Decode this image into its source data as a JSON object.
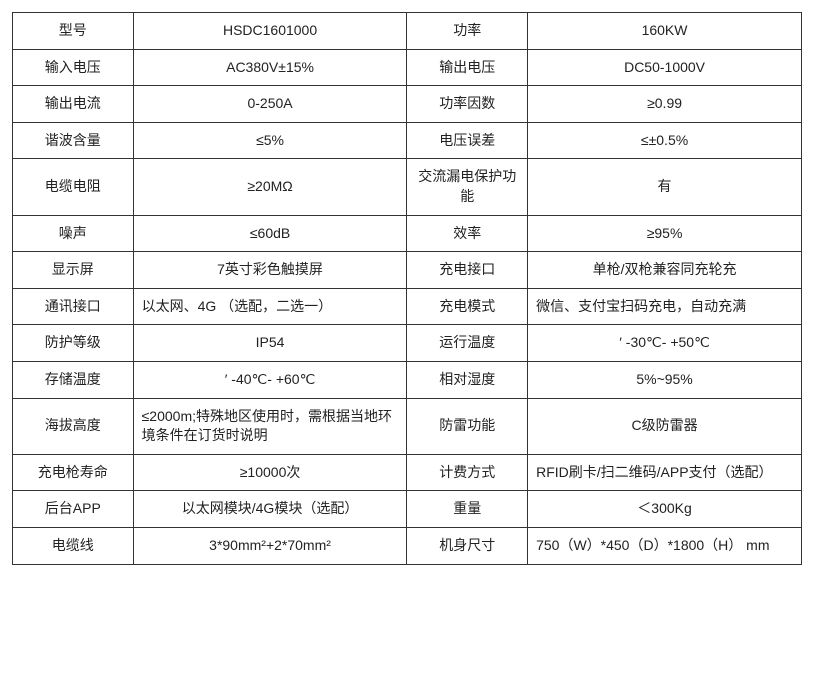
{
  "spec_table": {
    "border_color": "#333333",
    "text_color": "#222222",
    "background_color": "#ffffff",
    "font_size": 14,
    "rows": [
      {
        "label1": "型号",
        "value1": "HSDC1601000",
        "label2": "功率",
        "value2": "160KW"
      },
      {
        "label1": "输入电压",
        "value1": "AC380V±15%",
        "label2": "输出电压",
        "value2": "DC50-1000V"
      },
      {
        "label1": "输出电流",
        "value1": "0-250A",
        "label2": "功率因数",
        "value2": "≥0.99"
      },
      {
        "label1": "谐波含量",
        "value1": "≤5%",
        "label2": "电压误差",
        "value2": "≤±0.5%"
      },
      {
        "label1": "电缆电阻",
        "value1": "≥20MΩ",
        "label2": "交流漏电保护功能",
        "value2": "有"
      },
      {
        "label1": "噪声",
        "value1": "≤60dB",
        "label2": "效率",
        "value2": "≥95%"
      },
      {
        "label1": "显示屏",
        "value1": "7英寸彩色触摸屏",
        "label2": "充电接口",
        "value2": "单枪/双枪兼容同充轮充"
      },
      {
        "label1": "通讯接口",
        "value1": "以太网、4G （选配，二选一）",
        "label2": "充电模式",
        "value2": "微信、支付宝扫码充电，自动充满",
        "v1_align": "left",
        "v2_align": "left"
      },
      {
        "label1": "防护等级",
        "value1": "IP54",
        "label2": "运行温度",
        "value2": "′ -30℃- +50℃"
      },
      {
        "label1": "存储温度",
        "value1": "′ -40℃- +60℃",
        "label2": "相对湿度",
        "value2": "5%~95%"
      },
      {
        "label1": "海拔高度",
        "value1": "≤2000m;特殊地区使用时，需根据当地环境条件在订货时说明",
        "label2": "防雷功能",
        "value2": "C级防雷器",
        "v1_align": "left"
      },
      {
        "label1": "充电枪寿命",
        "value1": "≥10000次",
        "label2": "计费方式",
        "value2": "RFID刷卡/扫二维码/APP支付（选配）",
        "v2_align": "left"
      },
      {
        "label1": "后台APP",
        "value1": "以太网模块/4G模块（选配）",
        "label2": "重量",
        "value2": "＜300Kg"
      },
      {
        "label1": "电缆线",
        "value1": "3*90mm²+2*70mm²",
        "label2": "机身尺寸",
        "value2": "750（W）*450（D）*1800（H） mm",
        "v2_align": "left"
      }
    ]
  }
}
